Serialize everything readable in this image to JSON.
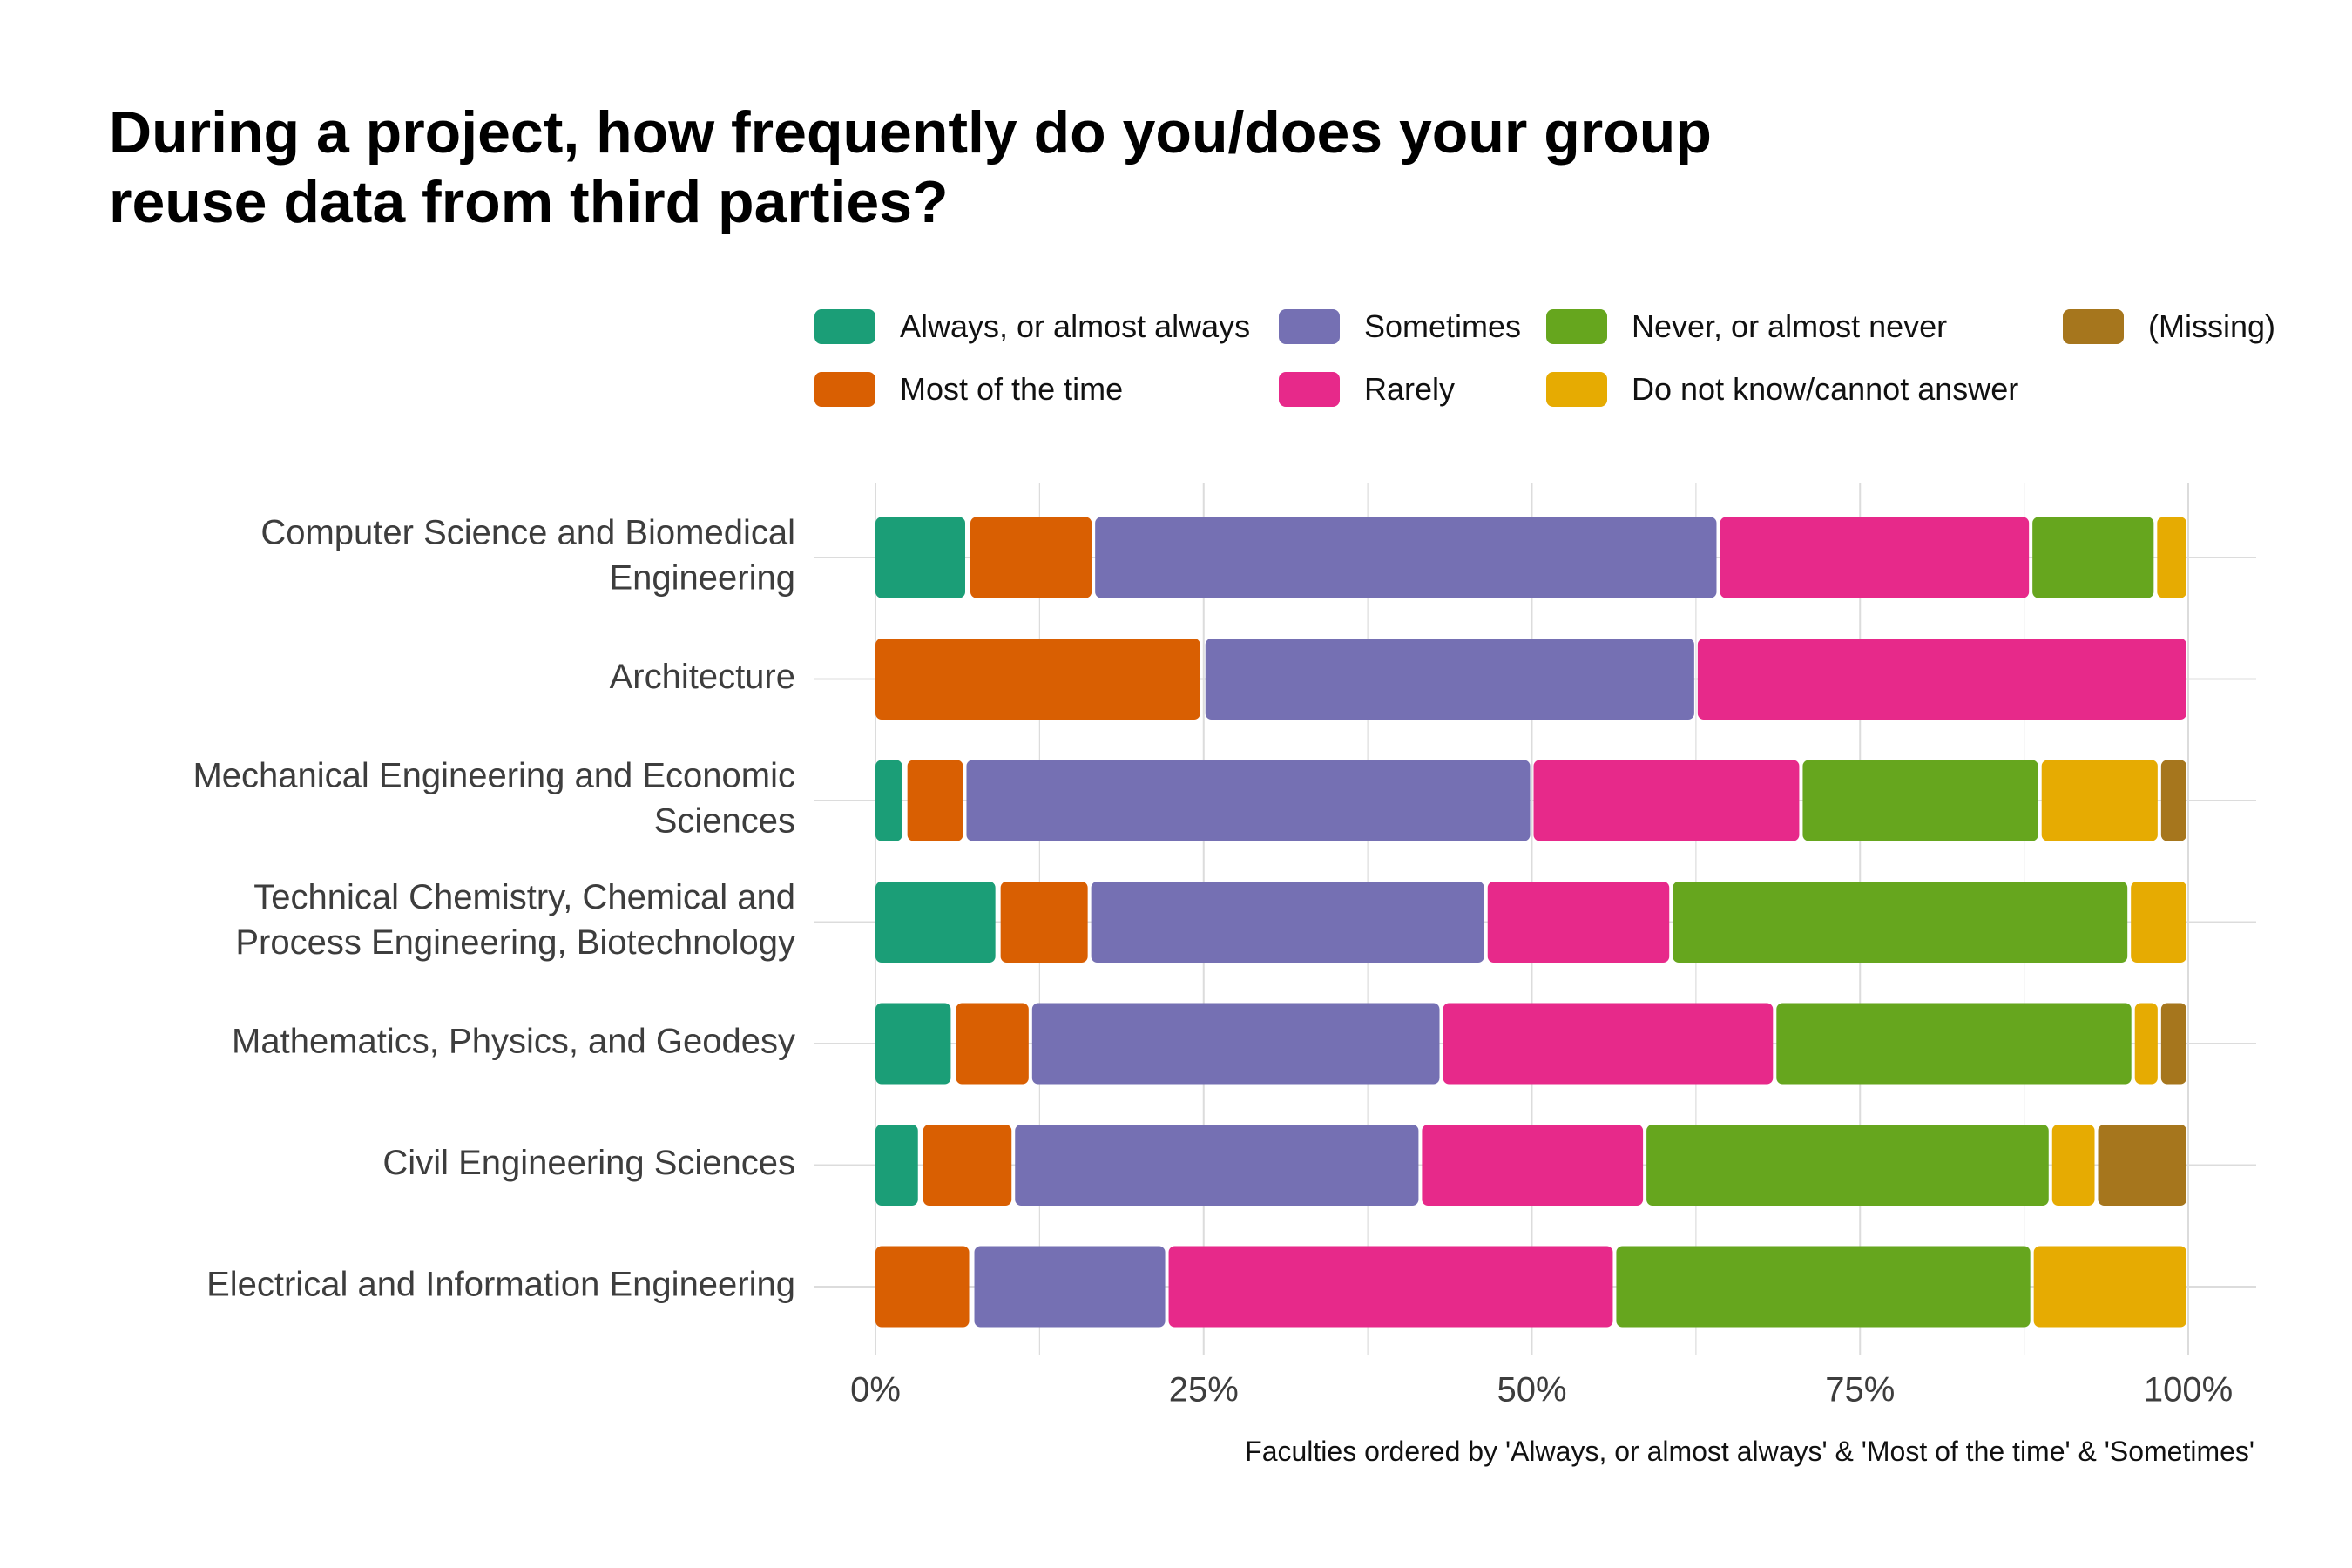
{
  "chart_data": {
    "type": "bar",
    "orientation": "horizontal",
    "stacked": true,
    "title_lines": [
      "During a project, how frequently do you/does your group",
      "reuse data from third parties?"
    ],
    "caption": "Faculties ordered by 'Always, or almost always' & 'Most of the time' & 'Sometimes'",
    "categories": [
      [
        "Computer Science and Biomedical",
        "Engineering"
      ],
      [
        "Architecture"
      ],
      [
        "Mechanical Engineering and Economic",
        "Sciences"
      ],
      [
        "Technical Chemistry, Chemical and",
        "Process Engineering, Biotechnology"
      ],
      [
        "Mathematics, Physics, and Geodesy"
      ],
      [
        "Civil Engineering Sciences"
      ],
      [
        "Electrical and Information Engineering"
      ]
    ],
    "series": [
      {
        "name": "Always, or almost always",
        "color": "#1b9e77",
        "values": [
          7.1,
          0,
          2.3,
          9.4,
          6.0,
          3.5,
          0
        ]
      },
      {
        "name": "Most of the time",
        "color": "#d95f02",
        "values": [
          9.5,
          25.0,
          4.5,
          6.9,
          5.8,
          7.0,
          7.4
        ]
      },
      {
        "name": "Sometimes",
        "color": "#7570b3",
        "values": [
          47.6,
          37.5,
          43.2,
          30.2,
          31.3,
          31.0,
          14.8
        ]
      },
      {
        "name": "Rarely",
        "color": "#e7298a",
        "values": [
          23.8,
          37.5,
          20.5,
          14.1,
          25.4,
          17.1,
          34.1
        ]
      },
      {
        "name": "Never, or almost never",
        "color": "#66a61e",
        "values": [
          9.5,
          0,
          18.2,
          34.9,
          27.3,
          30.9,
          31.8
        ]
      },
      {
        "name": "Do not know/cannot answer",
        "color": "#e6ab02",
        "values": [
          2.5,
          0,
          9.1,
          4.5,
          2.0,
          3.5,
          11.9
        ]
      },
      {
        "name": "(Missing)",
        "color": "#a6761d",
        "values": [
          0,
          0,
          2.2,
          0,
          2.2,
          7.0,
          0
        ]
      }
    ],
    "xlim": [
      0,
      100
    ],
    "x_ticks": [
      0,
      25,
      50,
      75,
      100
    ],
    "x_tick_labels": [
      "0%",
      "25%",
      "50%",
      "75%",
      "100%"
    ],
    "grid": true,
    "legend_position": "top-right"
  }
}
